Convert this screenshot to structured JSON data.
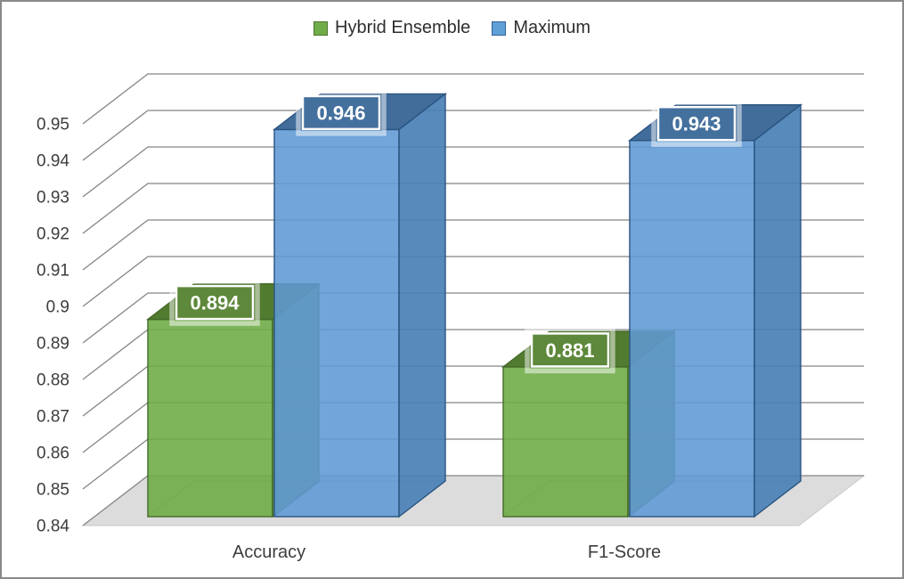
{
  "chart_data": {
    "type": "bar",
    "subtype": "3d-clustered-column",
    "title": "",
    "categories": [
      "Accuracy",
      "F1-Score"
    ],
    "series": [
      {
        "name": "Hybrid Ensemble",
        "values": [
          0.894,
          0.881
        ],
        "data_labels": [
          "0.894",
          "0.881"
        ],
        "front_color": "#6CAA43",
        "top_color": "#517B2F",
        "side_color": "#5E9140",
        "edge_color": "#456928",
        "label_fill": "#5E883B"
      },
      {
        "name": "Maximum",
        "values": [
          0.946,
          0.943
        ],
        "data_labels": [
          "0.946",
          "0.943"
        ],
        "front_color": "#5E99D4",
        "top_color": "#426D9B",
        "side_color": "#4A80B6",
        "edge_color": "#2A5480",
        "label_fill": "#44709E"
      }
    ],
    "ylim": [
      0.84,
      0.95
    ],
    "ytick_step": 0.01,
    "ytick_labels": [
      "0.95",
      "0.94",
      "0.93",
      "0.92",
      "0.91",
      "0.9",
      "0.89",
      "0.88",
      "0.87",
      "0.86",
      "0.85",
      "0.84"
    ],
    "xlabel": "",
    "ylabel": "",
    "grid": true,
    "legend_position": "top"
  },
  "legend": {
    "items": [
      {
        "label": "Hybrid Ensemble",
        "fill": "#71AC4B",
        "border": "#4C752C"
      },
      {
        "label": "Maximum",
        "fill": "#5FA0D6",
        "border": "#2E6298"
      }
    ]
  },
  "theme": {
    "background": "#FFFFFF",
    "frame_border": "#8A8A8A",
    "floor_color": "#DCDCDC",
    "floor_edge": "#C9C9C9",
    "gridline_color": "#858585",
    "axis_text_color": "#3D3D3D",
    "data_label_text": "#FFFFFF"
  }
}
